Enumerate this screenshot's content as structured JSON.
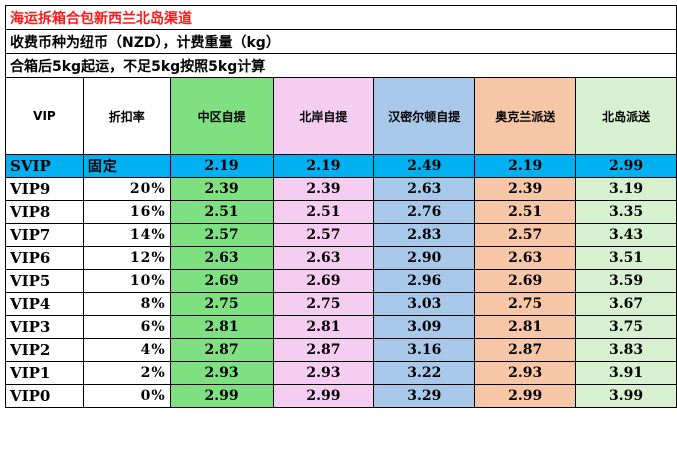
{
  "title": "海运拆箱合包新西兰北岛渠道",
  "notes": [
    "收费币种为纽币（NZD），计费重量（kg）",
    "合箱后5kg起运，不足5kg按照5kg计算"
  ],
  "headers": [
    "VIP",
    "折扣率",
    "中区自提",
    "北岸自提",
    "汉密尔顿自提",
    "奥克兰派送",
    "北岛派送"
  ],
  "column_colors": [
    "#ffffff",
    "#ffffff",
    "#7ee081",
    "#f4cdf0",
    "#a8c8ea",
    "#f7c6a6",
    "#d7f1d0"
  ],
  "svip_color": "#00b0f0",
  "rows": [
    {
      "level": "SVIP",
      "discount": "固定",
      "prices": [
        "2.19",
        "2.19",
        "2.49",
        "2.19",
        "2.99"
      ]
    },
    {
      "level": "VIP9",
      "discount": "20%",
      "prices": [
        "2.39",
        "2.39",
        "2.63",
        "2.39",
        "3.19"
      ]
    },
    {
      "level": "VIP8",
      "discount": "16%",
      "prices": [
        "2.51",
        "2.51",
        "2.76",
        "2.51",
        "3.35"
      ]
    },
    {
      "level": "VIP7",
      "discount": "14%",
      "prices": [
        "2.57",
        "2.57",
        "2.83",
        "2.57",
        "3.43"
      ]
    },
    {
      "level": "VIP6",
      "discount": "12%",
      "prices": [
        "2.63",
        "2.63",
        "2.90",
        "2.63",
        "3.51"
      ]
    },
    {
      "level": "VIP5",
      "discount": "10%",
      "prices": [
        "2.69",
        "2.69",
        "2.96",
        "2.69",
        "3.59"
      ]
    },
    {
      "level": "VIP4",
      "discount": "8%",
      "prices": [
        "2.75",
        "2.75",
        "3.03",
        "2.75",
        "3.67"
      ]
    },
    {
      "level": "VIP3",
      "discount": "6%",
      "prices": [
        "2.81",
        "2.81",
        "3.09",
        "2.81",
        "3.75"
      ]
    },
    {
      "level": "VIP2",
      "discount": "4%",
      "prices": [
        "2.87",
        "2.87",
        "3.16",
        "2.87",
        "3.83"
      ]
    },
    {
      "level": "VIP1",
      "discount": "2%",
      "prices": [
        "2.93",
        "2.93",
        "3.22",
        "2.93",
        "3.91"
      ]
    },
    {
      "level": "VIP0",
      "discount": "0%",
      "prices": [
        "2.99",
        "2.99",
        "3.29",
        "2.99",
        "3.99"
      ]
    }
  ]
}
